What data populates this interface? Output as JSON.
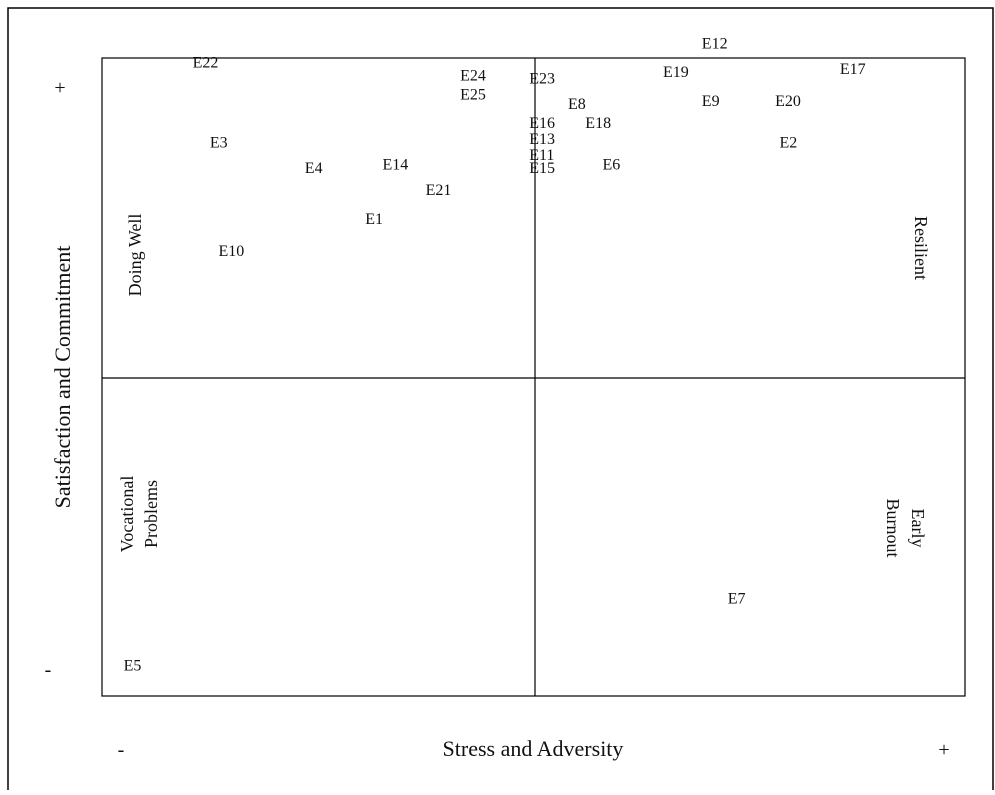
{
  "chart_data": {
    "type": "scatter",
    "title": "",
    "xlabel": "Stress and Adversity",
    "ylabel": "Satisfaction and Commitment",
    "xlim": [
      -1,
      1
    ],
    "ylim": [
      -1,
      1
    ],
    "grid": false,
    "x_signs": {
      "min": "-",
      "max": "+"
    },
    "y_signs": {
      "min": "-",
      "max": "+"
    },
    "quadrants": [
      {
        "key": "top-left",
        "label": [
          "Doing Well"
        ]
      },
      {
        "key": "top-right",
        "label": [
          "Resilient"
        ]
      },
      {
        "key": "bottom-left",
        "label": [
          "Vocational",
          "Problems"
        ]
      },
      {
        "key": "bottom-right",
        "label": [
          "Early",
          "Burnout"
        ]
      }
    ],
    "points": [
      {
        "label": "E1",
        "x": -0.39,
        "y": 0.48
      },
      {
        "label": "E2",
        "x": 0.57,
        "y": 0.72
      },
      {
        "label": "E3",
        "x": -0.75,
        "y": 0.72
      },
      {
        "label": "E4",
        "x": -0.53,
        "y": 0.64
      },
      {
        "label": "E5",
        "x": -0.95,
        "y": -0.92
      },
      {
        "label": "E6",
        "x": 0.16,
        "y": 0.65
      },
      {
        "label": "E7",
        "x": 0.45,
        "y": -0.71
      },
      {
        "label": "E8",
        "x": 0.08,
        "y": 0.84
      },
      {
        "label": "E9",
        "x": 0.39,
        "y": 0.85
      },
      {
        "label": "E10",
        "x": -0.73,
        "y": 0.38
      },
      {
        "label": "E11",
        "x": -0.01,
        "y": 0.68
      },
      {
        "label": "E12",
        "x": 0.39,
        "y": 1.03
      },
      {
        "label": "E13",
        "x": -0.01,
        "y": 0.73
      },
      {
        "label": "E14",
        "x": -0.35,
        "y": 0.65
      },
      {
        "label": "E15",
        "x": -0.01,
        "y": 0.64
      },
      {
        "label": "E16",
        "x": -0.01,
        "y": 0.78
      },
      {
        "label": "E17",
        "x": 0.71,
        "y": 0.95
      },
      {
        "label": "E18",
        "x": 0.12,
        "y": 0.78
      },
      {
        "label": "E19",
        "x": 0.3,
        "y": 0.94
      },
      {
        "label": "E20",
        "x": 0.56,
        "y": 0.85
      },
      {
        "label": "E21",
        "x": -0.25,
        "y": 0.57
      },
      {
        "label": "E22",
        "x": -0.79,
        "y": 0.97
      },
      {
        "label": "E23",
        "x": -0.01,
        "y": 0.92
      },
      {
        "label": "E24",
        "x": -0.17,
        "y": 0.93
      },
      {
        "label": "E25",
        "x": -0.17,
        "y": 0.87
      }
    ]
  }
}
